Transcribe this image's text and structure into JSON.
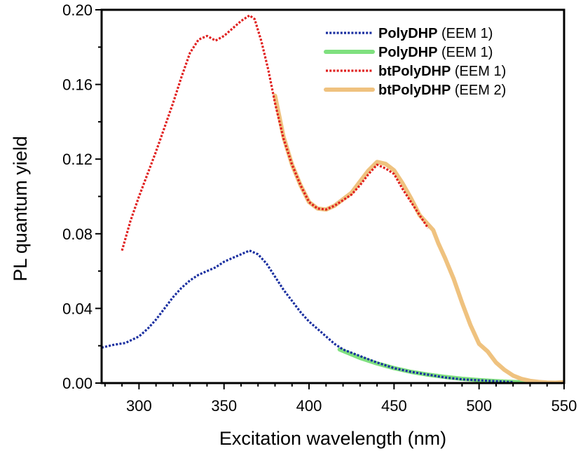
{
  "chart_data": {
    "type": "line",
    "xlabel": "Excitation wavelength (nm)",
    "ylabel": "PL quantum yield",
    "xlim": [
      278,
      550
    ],
    "ylim": [
      0,
      0.2
    ],
    "x_ticks": [
      "300",
      "350",
      "400",
      "450",
      "500",
      "550"
    ],
    "y_ticks": [
      "0.00",
      "0.04",
      "0.08",
      "0.12",
      "0.16",
      "0.20"
    ],
    "grid": false,
    "legend_position": "top-right",
    "series": [
      {
        "name": "PolyDHP",
        "name_suffix": "(EEM 1)",
        "color": "#1a2fa0",
        "style": "dotted",
        "points": [
          [
            278,
            0.019
          ],
          [
            285,
            0.0205
          ],
          [
            292,
            0.0215
          ],
          [
            300,
            0.025
          ],
          [
            305,
            0.029
          ],
          [
            310,
            0.034
          ],
          [
            315,
            0.04
          ],
          [
            320,
            0.046
          ],
          [
            325,
            0.051
          ],
          [
            330,
            0.055
          ],
          [
            335,
            0.058
          ],
          [
            340,
            0.06
          ],
          [
            345,
            0.062
          ],
          [
            350,
            0.065
          ],
          [
            355,
            0.067
          ],
          [
            360,
            0.069
          ],
          [
            365,
            0.071
          ],
          [
            370,
            0.069
          ],
          [
            375,
            0.064
          ],
          [
            380,
            0.057
          ],
          [
            385,
            0.05
          ],
          [
            390,
            0.044
          ],
          [
            395,
            0.038
          ],
          [
            400,
            0.033
          ],
          [
            405,
            0.029
          ],
          [
            410,
            0.025
          ],
          [
            415,
            0.021
          ],
          [
            420,
            0.018
          ],
          [
            430,
            0.0145
          ],
          [
            440,
            0.011
          ],
          [
            450,
            0.008
          ],
          [
            460,
            0.006
          ],
          [
            470,
            0.0045
          ],
          [
            480,
            0.003
          ],
          [
            490,
            0.002
          ],
          [
            500,
            0.0015
          ],
          [
            510,
            0.001
          ],
          [
            520,
            0.0005
          ]
        ]
      },
      {
        "name": "PolyDHP",
        "name_suffix": "(EEM 1)",
        "color": "#7fe07f",
        "style": "solid",
        "points": [
          [
            418,
            0.018
          ],
          [
            430,
            0.0135
          ],
          [
            440,
            0.0105
          ],
          [
            450,
            0.008
          ],
          [
            460,
            0.006
          ],
          [
            470,
            0.0045
          ],
          [
            480,
            0.0033
          ],
          [
            490,
            0.0023
          ],
          [
            500,
            0.0016
          ],
          [
            510,
            0.001
          ],
          [
            520,
            0.0006
          ],
          [
            530,
            0.0003
          ],
          [
            540,
            0.0001
          ],
          [
            550,
            0.0
          ]
        ]
      },
      {
        "name": "btPolyDHP",
        "name_suffix": "(EEM 1)",
        "color": "#e0201f",
        "style": "dotted",
        "points": [
          [
            290,
            0.071
          ],
          [
            295,
            0.087
          ],
          [
            300,
            0.1
          ],
          [
            305,
            0.112
          ],
          [
            310,
            0.124
          ],
          [
            315,
            0.137
          ],
          [
            320,
            0.15
          ],
          [
            325,
            0.164
          ],
          [
            330,
            0.177
          ],
          [
            335,
            0.184
          ],
          [
            340,
            0.186
          ],
          [
            345,
            0.1835
          ],
          [
            350,
            0.186
          ],
          [
            355,
            0.19
          ],
          [
            360,
            0.194
          ],
          [
            365,
            0.197
          ],
          [
            368,
            0.195
          ],
          [
            372,
            0.183
          ],
          [
            376,
            0.168
          ],
          [
            380,
            0.15
          ],
          [
            385,
            0.131
          ],
          [
            390,
            0.117
          ],
          [
            395,
            0.106
          ],
          [
            400,
            0.097
          ],
          [
            405,
            0.0935
          ],
          [
            410,
            0.093
          ],
          [
            415,
            0.095
          ],
          [
            420,
            0.098
          ],
          [
            425,
            0.101
          ],
          [
            430,
            0.106
          ],
          [
            435,
            0.112
          ],
          [
            440,
            0.117
          ],
          [
            445,
            0.115
          ],
          [
            450,
            0.112
          ],
          [
            455,
            0.104
          ],
          [
            460,
            0.097
          ],
          [
            465,
            0.09
          ],
          [
            470,
            0.083
          ]
        ]
      },
      {
        "name": "btPolyDHP",
        "name_suffix": "(EEM 2)",
        "color": "#efc27f",
        "style": "solid",
        "points": [
          [
            380,
            0.154
          ],
          [
            385,
            0.132
          ],
          [
            390,
            0.117
          ],
          [
            395,
            0.106
          ],
          [
            400,
            0.097
          ],
          [
            405,
            0.0935
          ],
          [
            410,
            0.093
          ],
          [
            415,
            0.095
          ],
          [
            420,
            0.0985
          ],
          [
            425,
            0.102
          ],
          [
            430,
            0.108
          ],
          [
            435,
            0.114
          ],
          [
            440,
            0.1185
          ],
          [
            445,
            0.1175
          ],
          [
            450,
            0.114
          ],
          [
            455,
            0.107
          ],
          [
            460,
            0.099
          ],
          [
            465,
            0.09
          ],
          [
            470,
            0.085
          ],
          [
            473,
            0.082
          ],
          [
            476,
            0.075
          ],
          [
            480,
            0.067
          ],
          [
            485,
            0.056
          ],
          [
            490,
            0.043
          ],
          [
            495,
            0.031
          ],
          [
            500,
            0.021
          ],
          [
            505,
            0.017
          ],
          [
            510,
            0.011
          ],
          [
            515,
            0.007
          ],
          [
            520,
            0.004
          ],
          [
            525,
            0.0022
          ],
          [
            530,
            0.0012
          ],
          [
            535,
            0.0006
          ],
          [
            540,
            0.0003
          ],
          [
            545,
            0.0002
          ],
          [
            550,
            0.0005
          ]
        ]
      }
    ]
  }
}
